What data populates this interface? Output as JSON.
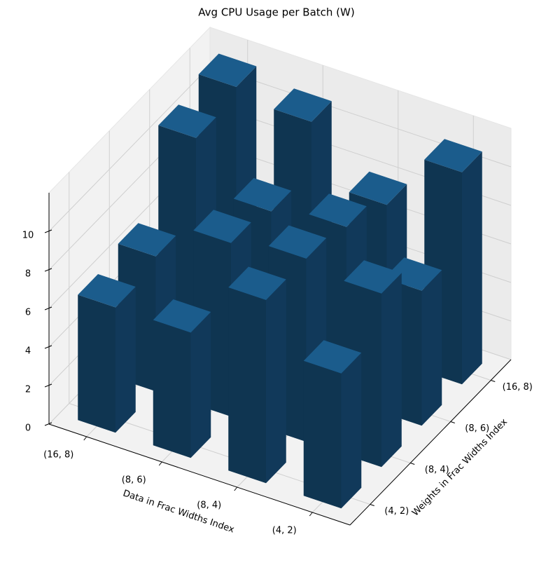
{
  "chart_data": {
    "type": "bar3d",
    "title": "Avg CPU Usage per Batch (W)",
    "x_label": "Data in Frac Widths Index",
    "y_label": "Weights in Frac Widths Index",
    "x_categories": [
      "(16, 8)",
      "(8, 6)",
      "(8, 4)",
      "(4, 2)"
    ],
    "y_categories": [
      "(4, 2)",
      "(8, 4)",
      "(8, 6)",
      "(16, 8)"
    ],
    "values": [
      [
        6.5,
        6.5,
        9.5,
        7
      ],
      [
        7,
        9,
        9.5,
        9
      ],
      [
        11,
        8.5,
        9,
        7
      ],
      [
        11.5,
        11,
        8,
        11
      ]
    ],
    "zlim": [
      0,
      12
    ],
    "zticks": [
      0,
      2,
      4,
      6,
      8,
      10
    ],
    "color": {
      "top": "#1b5c8c",
      "front": "#0f3551",
      "side": "#11395a"
    }
  }
}
